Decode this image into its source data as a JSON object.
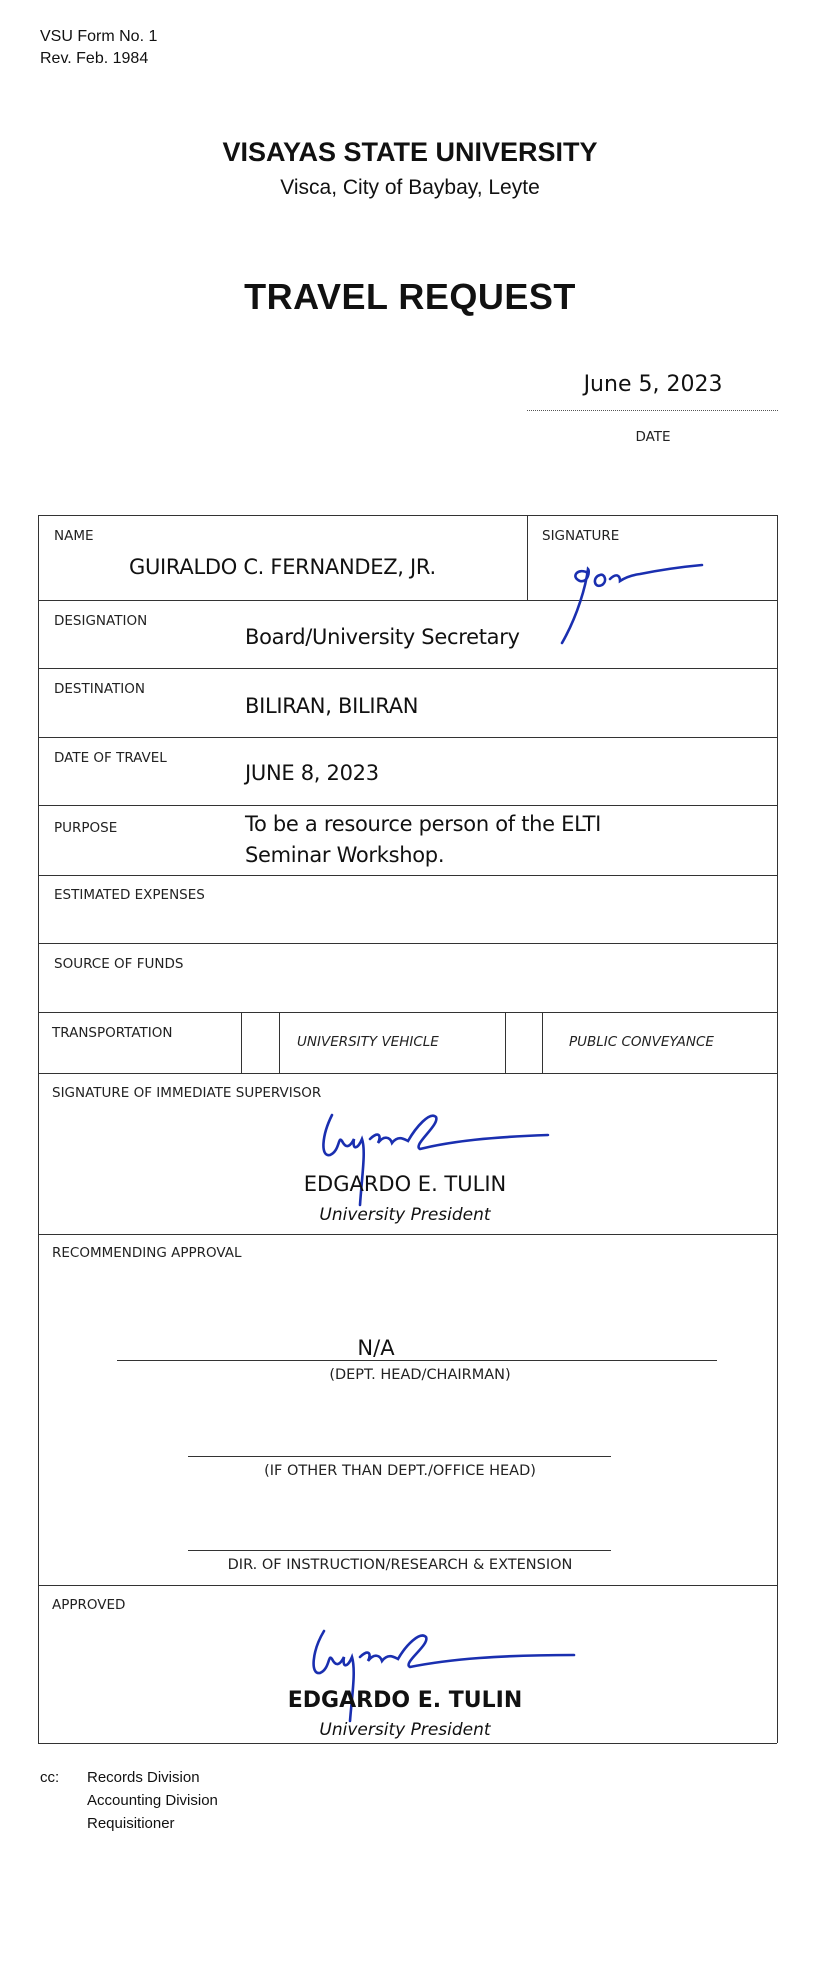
{
  "header": {
    "form_no": "VSU Form No. 1",
    "revision": "Rev. Feb. 1984",
    "university": "VISAYAS STATE UNIVERSITY",
    "address": "Visca, City of Baybay, Leyte",
    "title": "TRAVEL REQUEST",
    "date_value": "June 5, 2023",
    "date_label": "DATE"
  },
  "form": {
    "name_label": "NAME",
    "name_value": "GUIRALDO C. FERNANDEZ, JR.",
    "signature_label": "SIGNATURE",
    "designation_label": "DESIGNATION",
    "designation_value": "Board/University Secretary",
    "destination_label": "DESTINATION",
    "destination_value": "BILIRAN, BILIRAN",
    "date_of_travel_label": "DATE OF TRAVEL",
    "date_of_travel_value": "JUNE 8, 2023",
    "purpose_label": "PURPOSE",
    "purpose_line1": "To be a resource person of the ELTI",
    "purpose_line2": "Seminar Workshop.",
    "estimated_expenses_label": "ESTIMATED EXPENSES",
    "source_of_funds_label": "SOURCE OF FUNDS",
    "transportation_label": "TRANSPORTATION",
    "transport_option1": "UNIVERSITY VEHICLE",
    "transport_option2": "PUBLIC CONVEYANCE",
    "supervisor_label": "SIGNATURE OF IMMEDIATE SUPERVISOR",
    "supervisor_name": "EDGARDO E. TULIN",
    "supervisor_title": "University President",
    "recommending_label": "RECOMMENDING APPROVAL",
    "dept_head_value": "N/A",
    "dept_head_label": "(DEPT. HEAD/CHAIRMAN)",
    "other_head_label": "(IF OTHER THAN DEPT./OFFICE HEAD)",
    "director_label": "DIR. OF INSTRUCTION/RESEARCH & EXTENSION",
    "approved_label": "APPROVED",
    "approver_name": "EDGARDO E. TULIN",
    "approver_title": "University President"
  },
  "cc": {
    "label": "cc:",
    "items": [
      "Records Division",
      "Accounting Division",
      "Requisitioner"
    ]
  },
  "colors": {
    "ink": "#111111",
    "signature": "#1a2fb0"
  }
}
